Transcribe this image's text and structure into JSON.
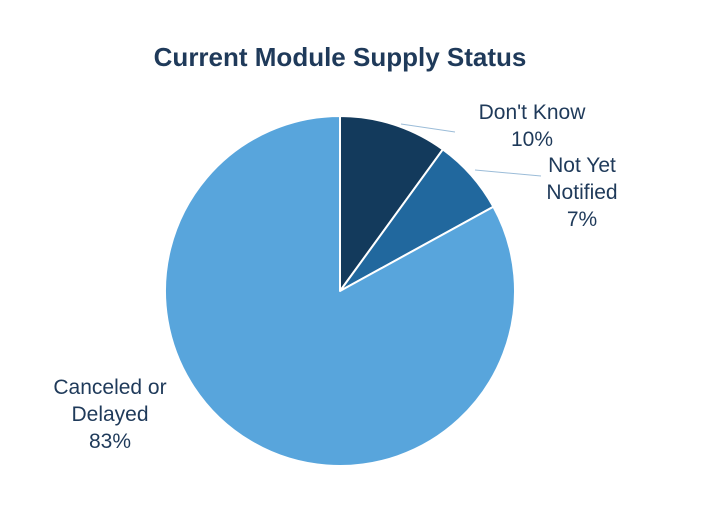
{
  "chart_data": {
    "type": "pie",
    "title": "Current Module Supply Status",
    "start_angle_deg": 0,
    "direction": "clockwise",
    "slices": [
      {
        "label_lines": [
          "Don't Know"
        ],
        "label": "Don't Know",
        "value": 10,
        "value_label": "10%",
        "color": "#133a5c"
      },
      {
        "label_lines": [
          "Not Yet",
          "Notified"
        ],
        "label": "Not Yet Notified",
        "value": 7,
        "value_label": "7%",
        "color": "#21689e"
      },
      {
        "label_lines": [
          "Canceled or",
          "Delayed"
        ],
        "label": "Canceled or Delayed",
        "value": 83,
        "value_label": "83%",
        "color": "#58a5dc"
      }
    ]
  }
}
